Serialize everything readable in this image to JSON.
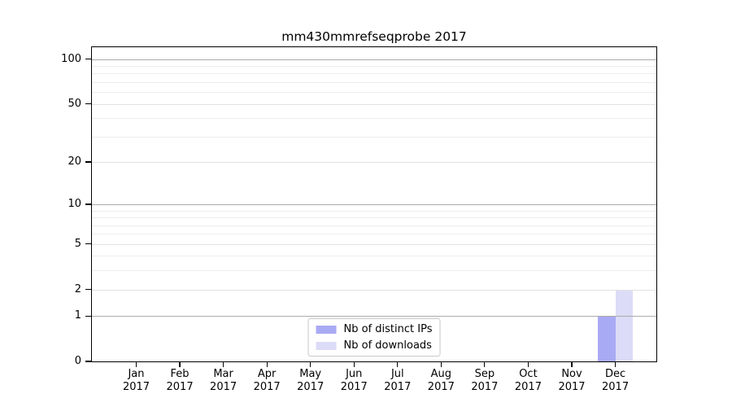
{
  "chart_data": {
    "type": "bar",
    "title": "mm430mmrefseqprobe 2017",
    "x_axis": {
      "categories": [
        {
          "label": "Jan",
          "sublabel": "2017"
        },
        {
          "label": "Feb",
          "sublabel": "2017"
        },
        {
          "label": "Mar",
          "sublabel": "2017"
        },
        {
          "label": "Apr",
          "sublabel": "2017"
        },
        {
          "label": "May",
          "sublabel": "2017"
        },
        {
          "label": "Jun",
          "sublabel": "2017"
        },
        {
          "label": "Jul",
          "sublabel": "2017"
        },
        {
          "label": "Aug",
          "sublabel": "2017"
        },
        {
          "label": "Sep",
          "sublabel": "2017"
        },
        {
          "label": "Oct",
          "sublabel": "2017"
        },
        {
          "label": "Nov",
          "sublabel": "2017"
        },
        {
          "label": "Dec",
          "sublabel": "2017"
        }
      ]
    },
    "y_axis": {
      "scale": "log1p",
      "range": [
        0,
        120
      ],
      "labeled_ticks": [
        0,
        1,
        2,
        5,
        10,
        20,
        50,
        100
      ],
      "decade_ticks": [
        1,
        10,
        100
      ],
      "minor_ticks": [
        3,
        4,
        6,
        7,
        8,
        9,
        30,
        40,
        60,
        70,
        80,
        90
      ],
      "grid": "horizontal"
    },
    "series": [
      {
        "name": "Nb of distinct IPs",
        "color": "#a9aaf4",
        "values": [
          0,
          0,
          0,
          0,
          0,
          0,
          0,
          0,
          0,
          0,
          0,
          1
        ]
      },
      {
        "name": "Nb of downloads",
        "color": "#dcdcf8",
        "values": [
          0,
          0,
          0,
          0,
          0,
          0,
          0,
          0,
          0,
          0,
          0,
          2
        ]
      }
    ],
    "legend_position": "lower center",
    "colors": {
      "grid_decade": "#ababab",
      "grid_sub": "#e2e2e2",
      "grid_minor": "#ededed",
      "axis": "#000000",
      "legend_border": "#c8c8c8",
      "text": "#000000",
      "background": "#ffffff"
    }
  }
}
